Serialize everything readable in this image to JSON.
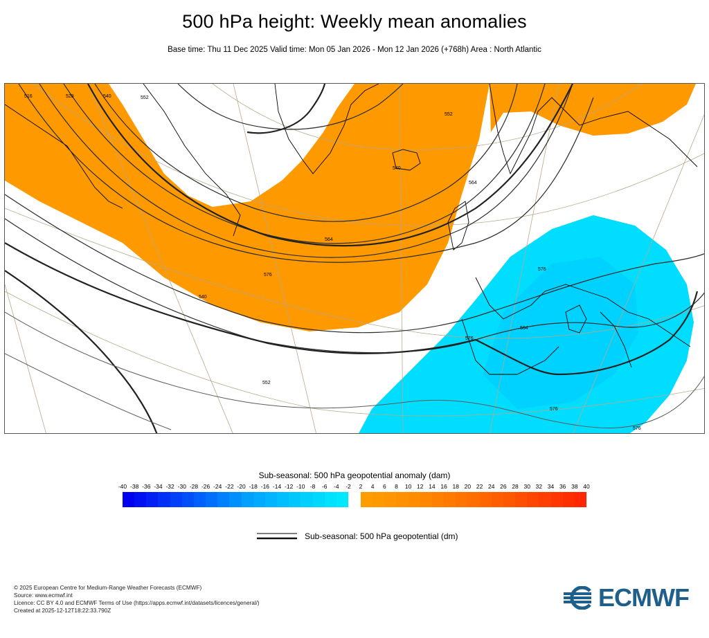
{
  "header": {
    "title": "500 hPa height: Weekly mean anomalies",
    "subtitle": "Base time: Thu 11 Dec 2025 Valid time: Mon 05 Jan 2026 - Mon 12 Jan 2026 (+768h) Area : North Atlantic"
  },
  "map": {
    "contour_labels": [
      "516",
      "528",
      "540",
      "552",
      "564",
      "576",
      "540",
      "552",
      "540",
      "552",
      "564",
      "576",
      "564",
      "576",
      "576",
      "576"
    ],
    "positive_anomaly_color": "#ff9900",
    "negative_anomaly_color": "#00ddff"
  },
  "colorbar": {
    "title": "Sub-seasonal: 500 hPa geopotential anomaly (dam)",
    "negative_ticks": [
      "-40",
      "-38",
      "-36",
      "-34",
      "-32",
      "-30",
      "-28",
      "-26",
      "-24",
      "-22",
      "-20",
      "-18",
      "-16",
      "-14",
      "-12",
      "-10",
      "-8",
      "-6",
      "-4",
      "-2"
    ],
    "positive_ticks": [
      "2",
      "4",
      "6",
      "8",
      "10",
      "12",
      "14",
      "16",
      "18",
      "20",
      "22",
      "24",
      "26",
      "28",
      "30",
      "32",
      "34",
      "36",
      "38",
      "40"
    ],
    "negative_colors": [
      "#0000f0",
      "#0010f2",
      "#0020f4",
      "#0030f6",
      "#0040f8",
      "#0050fa",
      "#0060fb",
      "#0070fc",
      "#0080fd",
      "#0090fe",
      "#00a0ff",
      "#00aaff",
      "#00b4ff",
      "#00beff",
      "#00c8ff",
      "#00d0ff",
      "#00d8ff",
      "#00e0ff",
      "#00e8ff",
      "#00eeff"
    ],
    "positive_colors": [
      "#ff9c00",
      "#ff9900",
      "#ff9500",
      "#ff9000",
      "#ff8b00",
      "#ff8600",
      "#ff8000",
      "#ff7a00",
      "#ff7300",
      "#ff6c00",
      "#ff6500",
      "#ff5e00",
      "#ff5600",
      "#ff4e00",
      "#ff4600",
      "#ff3e00",
      "#ff3600",
      "#ff2e00",
      "#ff2600",
      "#ff1e00"
    ]
  },
  "legend": {
    "contour_label": "Sub-seasonal: 500 hPa geopotential (dm)"
  },
  "footer": {
    "copyright": "© 2025 European Centre for Medium-Range Weather Forecasts (ECMWF)",
    "source": "Source: www.ecmwf.int",
    "licence": "Licence: CC BY 4.0 and ECMWF Terms of Use (https://apps.ecmwf.int/datasets/licences/general/)",
    "created": "Created at 2025-12-12T18:22:33.790Z"
  },
  "logo": {
    "text": "ECMWF",
    "color": "#1f5f8c"
  }
}
